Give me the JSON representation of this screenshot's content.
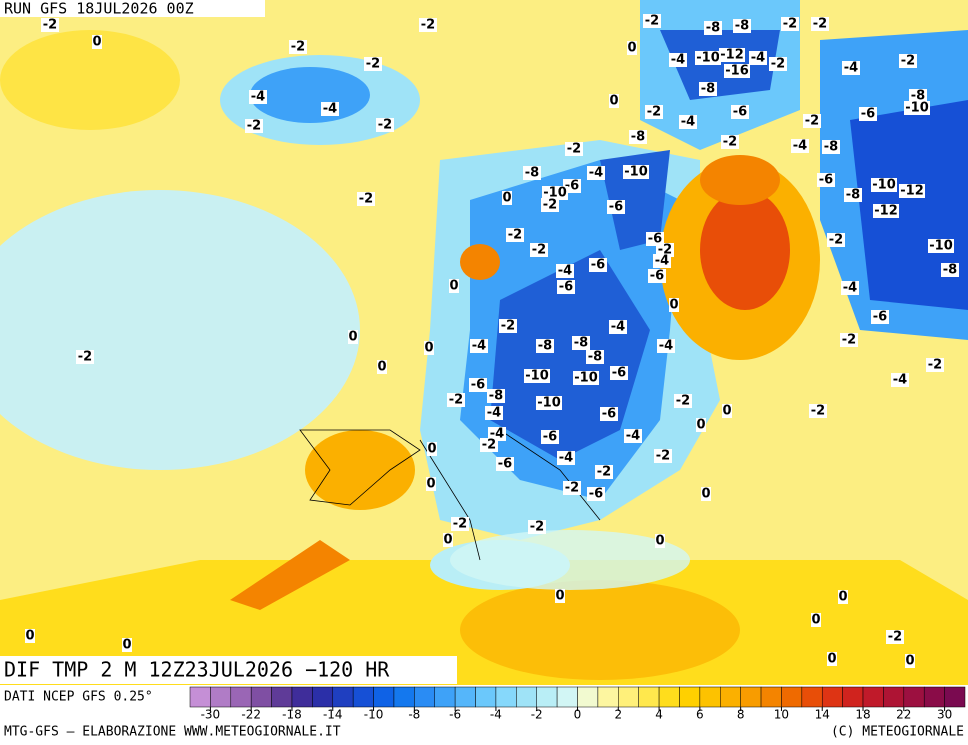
{
  "header": {
    "run": "RUN GFS 18JUL2026 00Z"
  },
  "map": {
    "title": "DIF TMP 2 M 12Z23JUL2026 −120 HR",
    "contour_labels": [
      0,
      -2,
      -2,
      -2,
      -4,
      -4,
      -2,
      -2,
      -2,
      -2,
      0,
      -2,
      -8,
      -8,
      -2,
      -2,
      -4,
      -10,
      -12,
      -4,
      -16,
      -2,
      -8,
      -4,
      -2,
      0,
      -2,
      -6,
      -8,
      -10,
      -6,
      -2,
      -4,
      -8,
      -2,
      -4,
      -8,
      -2,
      -4,
      -10,
      -8,
      -6,
      -10,
      -6,
      -10,
      -12,
      -8,
      -12,
      0,
      -2,
      -6,
      -2,
      -10,
      -8,
      -2,
      -2,
      -6,
      -2,
      -4,
      -6,
      -6,
      -4,
      -6,
      0,
      0,
      -4,
      -6,
      0,
      -2,
      -4,
      -4,
      -8,
      -8,
      -8,
      -4,
      -2,
      0,
      0,
      -2,
      -2,
      -4,
      -10,
      -10,
      -6,
      -6,
      -8,
      -2,
      -10,
      -4,
      -6,
      -2,
      0,
      0,
      -2,
      -4,
      -6,
      -4,
      -2,
      0,
      -4,
      -2,
      -6,
      -2,
      0,
      -2,
      -6,
      0,
      -2,
      -2,
      0,
      0,
      0,
      0,
      0,
      0,
      0,
      -2,
      0,
      0
    ]
  },
  "legend": {
    "source": "DATI NCEP GFS 0.25°",
    "colors": [
      "#c58fd6",
      "#b07cc6",
      "#9a66b5",
      "#7f4fa3",
      "#5f3b98",
      "#3f2d9a",
      "#2b2fa8",
      "#1f3fc0",
      "#1650d6",
      "#0f62e6",
      "#1478ee",
      "#2a8cf4",
      "#3ea2f8",
      "#55b6fa",
      "#6bc8fb",
      "#86d8fb",
      "#9fe3f7",
      "#b9eef6",
      "#d2f6f5",
      "#f2fad0",
      "#fdf6a0",
      "#fff07a",
      "#ffe84d",
      "#ffdd1c",
      "#ffd000",
      "#fdc200",
      "#fbb000",
      "#f89c00",
      "#f48400",
      "#ef6a00",
      "#e84e08",
      "#de3414",
      "#d0231e",
      "#c01a2a",
      "#ae1434",
      "#9c1040",
      "#8a0c48",
      "#7a0a50"
    ],
    "labels": [
      -30,
      -22,
      -18,
      -14,
      -10,
      -8,
      -6,
      -4,
      -2,
      0,
      2,
      4,
      6,
      8,
      10,
      14,
      18,
      22,
      30
    ]
  },
  "footer": {
    "left": "MTG-GFS — ELABORAZIONE WWW.METEOGIORNALE.IT",
    "right": "(C) METEOGIORNALE"
  }
}
